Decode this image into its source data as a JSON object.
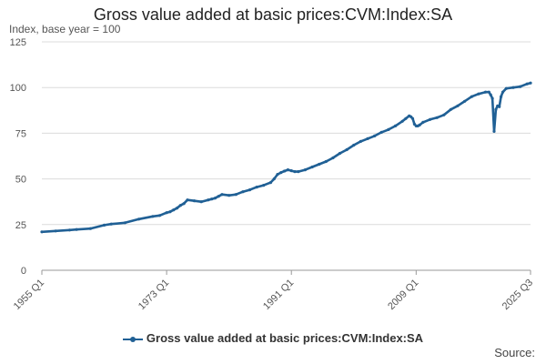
{
  "colors": {
    "series": "#206095",
    "grid": "#dcdcdc",
    "axis": "#999999",
    "text": "#555555"
  },
  "source_label": "Source:",
  "chart_data": {
    "type": "line",
    "title": "Gross value added at basic prices:CVM:Index:SA",
    "subtitle": "Index, base year = 100",
    "xlabel": "",
    "ylabel": "Index, base year = 100",
    "ylim": [
      0,
      125
    ],
    "yticks": [
      0,
      25,
      50,
      75,
      100,
      125
    ],
    "xlim": [
      1955.0,
      2025.5
    ],
    "xticks": [
      {
        "value": 1955.0,
        "label": "1955 Q1"
      },
      {
        "value": 1973.0,
        "label": "1973 Q1"
      },
      {
        "value": 1991.0,
        "label": "1991 Q1"
      },
      {
        "value": 2009.0,
        "label": "2009 Q1"
      },
      {
        "value": 2025.5,
        "label": "2025 Q3"
      }
    ],
    "grid": true,
    "legend": "bottom",
    "series": [
      {
        "name": "Gross value added at basic prices:CVM:Index:SA",
        "x": [
          1955.0,
          1957.0,
          1959.0,
          1960.0,
          1962.0,
          1964.0,
          1965.0,
          1967.0,
          1969.0,
          1971.0,
          1972.0,
          1973.0,
          1973.5,
          1974.0,
          1974.5,
          1975.0,
          1975.5,
          1976.0,
          1977.0,
          1978.0,
          1979.0,
          1979.5,
          1980.0,
          1980.5,
          1981.0,
          1982.0,
          1983.0,
          1984.0,
          1985.0,
          1986.0,
          1987.0,
          1988.0,
          1988.5,
          1989.0,
          1989.5,
          1990.0,
          1990.5,
          1991.0,
          1991.5,
          1992.0,
          1993.0,
          1994.0,
          1995.0,
          1996.0,
          1997.0,
          1998.0,
          1999.0,
          2000.0,
          2001.0,
          2002.0,
          2003.0,
          2004.0,
          2005.0,
          2006.0,
          2007.0,
          2007.5,
          2008.0,
          2008.25,
          2008.5,
          2008.75,
          2009.0,
          2009.25,
          2009.5,
          2010.0,
          2011.0,
          2012.0,
          2013.0,
          2014.0,
          2015.0,
          2016.0,
          2017.0,
          2018.0,
          2019.0,
          2019.5,
          2019.75,
          2020.0,
          2020.25,
          2020.5,
          2020.75,
          2021.0,
          2021.25,
          2021.5,
          2022.0,
          2023.0,
          2024.0,
          2025.0,
          2025.5
        ],
        "values": [
          21.0,
          21.5,
          22.0,
          22.3,
          22.8,
          24.7,
          25.3,
          26.0,
          28.0,
          29.5,
          30.0,
          31.5,
          32.0,
          33.0,
          34.0,
          35.5,
          36.5,
          38.5,
          38.0,
          37.5,
          38.5,
          39.0,
          39.5,
          40.5,
          41.5,
          41.0,
          41.5,
          43.0,
          44.0,
          45.5,
          46.5,
          48.0,
          50.0,
          52.5,
          53.5,
          54.3,
          55.0,
          54.5,
          54.0,
          54.0,
          55.0,
          56.5,
          58.0,
          59.5,
          61.5,
          64.0,
          66.0,
          68.5,
          70.5,
          72.0,
          73.5,
          75.5,
          77.0,
          79.0,
          81.5,
          83.0,
          84.5,
          84.0,
          83.0,
          80.0,
          79.0,
          79.0,
          79.5,
          81.0,
          82.5,
          83.5,
          85.0,
          88.0,
          90.0,
          92.5,
          95.0,
          96.5,
          97.5,
          97.5,
          96.0,
          94.0,
          76.0,
          88.0,
          90.0,
          89.5,
          95.0,
          97.5,
          99.5,
          100.0,
          100.5,
          102.0,
          102.5
        ]
      }
    ]
  }
}
